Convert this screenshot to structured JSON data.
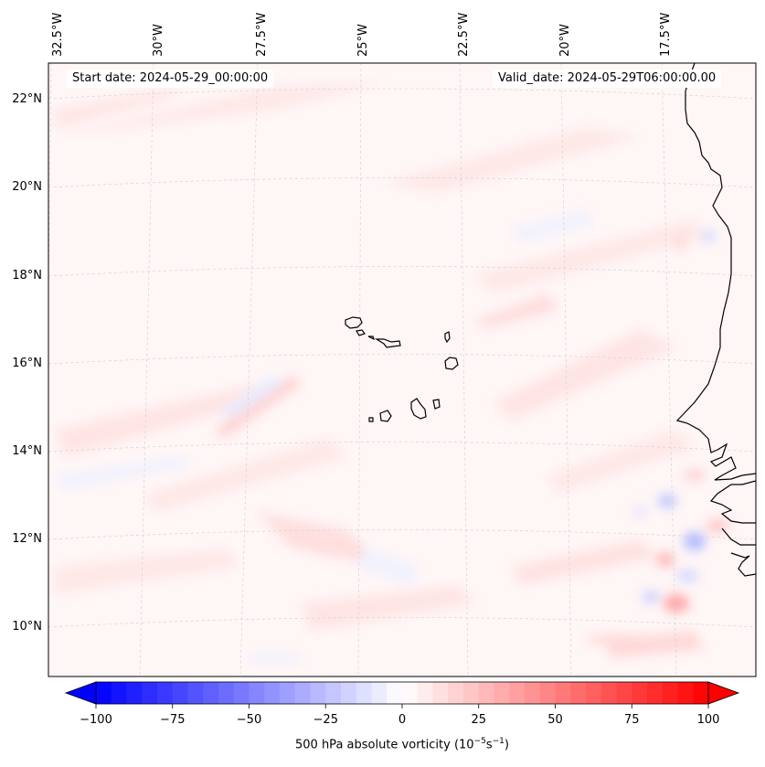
{
  "header": {
    "start_date": "Start date: 2024-05-29_00:00:00",
    "valid_date": "Valid_date: 2024-05-29T06:00:00.00"
  },
  "longitude_labels": [
    "32.5°W",
    "30°W",
    "27.5°W",
    "25°W",
    "22.5°W",
    "20°W",
    "17.5°W"
  ],
  "latitude_labels": [
    "22°N",
    "20°N",
    "18°N",
    "16°N",
    "14°N",
    "12°N",
    "10°N"
  ],
  "colorbar": {
    "label_prefix": "500 hPa absolute vorticity (10",
    "label_exp1": "−5",
    "label_mid": "s",
    "label_exp2": "−1",
    "label_suffix": ")",
    "ticks": [
      "−100",
      "−75",
      "−50",
      "−25",
      "0",
      "25",
      "50",
      "75",
      "100"
    ],
    "min": -100,
    "max": 100,
    "colors": {
      "low": "#0000ff",
      "mid": "#ffffff",
      "high": "#ff0000"
    }
  },
  "features": {
    "coastline_color": "#000000",
    "grid_color": "#c8c8c8"
  }
}
